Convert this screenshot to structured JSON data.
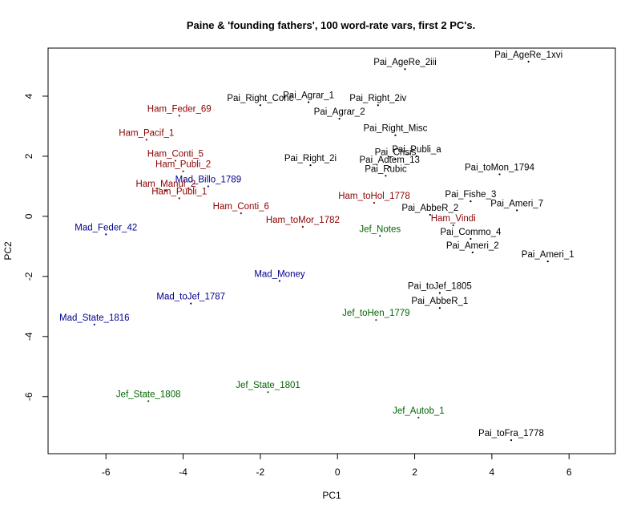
{
  "chart_data": {
    "type": "scatter",
    "title": "Paine & 'founding fathers', 100 word-rate vars, first 2 PC's.",
    "xlabel": "PC1",
    "ylabel": "PC2",
    "xlim": [
      -7.5,
      7.2
    ],
    "ylim": [
      -7.9,
      5.6
    ],
    "xticks": [
      "-6",
      "-4",
      "-2",
      "0",
      "2",
      "4",
      "6"
    ],
    "yticks": [
      "-6",
      "-4",
      "-2",
      "0",
      "2",
      "4"
    ],
    "grid": false,
    "legend": "none",
    "colors": {
      "Pai": "#000000",
      "Ham": "#8b0000",
      "Mad": "#00008b",
      "Jef": "#006400"
    },
    "points": [
      {
        "label": "Pai_AgeRe_2iii",
        "group": "Pai",
        "x": 1.75,
        "y": 4.9
      },
      {
        "label": "Pai_AgeRe_1xvi",
        "group": "Pai",
        "x": 4.95,
        "y": 5.15
      },
      {
        "label": "Pai_Agrar_1",
        "group": "Pai",
        "x": -0.75,
        "y": 3.8
      },
      {
        "label": "Pai_Right_Conc",
        "group": "Pai",
        "x": -2.0,
        "y": 3.7
      },
      {
        "label": "Pai_Right_2iv",
        "group": "Pai",
        "x": 1.05,
        "y": 3.7
      },
      {
        "label": "Pai_Agrar_2",
        "group": "Pai",
        "x": 0.05,
        "y": 3.25
      },
      {
        "label": "Pai_Right_Misc",
        "group": "Pai",
        "x": 1.5,
        "y": 2.7
      },
      {
        "label": "Pai_Publi_a",
        "group": "Pai",
        "x": 2.05,
        "y": 2.0
      },
      {
        "label": "Pai_Crisis",
        "group": "Pai",
        "x": 1.5,
        "y": 1.9
      },
      {
        "label": "Pai_Adtem_13",
        "group": "Pai",
        "x": 1.35,
        "y": 1.65
      },
      {
        "label": "Pai_Rubic",
        "group": "Pai",
        "x": 1.25,
        "y": 1.35
      },
      {
        "label": "Pai_Right_2i",
        "group": "Pai",
        "x": -0.7,
        "y": 1.7
      },
      {
        "label": "Pai_toMon_1794",
        "group": "Pai",
        "x": 4.2,
        "y": 1.4
      },
      {
        "label": "Pai_Fishe_3",
        "group": "Pai",
        "x": 3.45,
        "y": 0.5
      },
      {
        "label": "Pai_Ameri_7",
        "group": "Pai",
        "x": 4.65,
        "y": 0.2
      },
      {
        "label": "Pai_AbbeR_2",
        "group": "Pai",
        "x": 2.4,
        "y": 0.05
      },
      {
        "label": "Pai_Commo_4",
        "group": "Pai",
        "x": 3.45,
        "y": -0.75
      },
      {
        "label": "Pai_Ameri_2",
        "group": "Pai",
        "x": 3.5,
        "y": -1.2
      },
      {
        "label": "Pai_Ameri_1",
        "group": "Pai",
        "x": 5.45,
        "y": -1.5
      },
      {
        "label": "Pai_toJef_1805",
        "group": "Pai",
        "x": 2.65,
        "y": -2.55
      },
      {
        "label": "Pai_AbbeR_1",
        "group": "Pai",
        "x": 2.65,
        "y": -3.05
      },
      {
        "label": "Pai_toFra_1778",
        "group": "Pai",
        "x": 4.5,
        "y": -7.45
      },
      {
        "label": "Ham_Feder_69",
        "group": "Ham",
        "x": -4.1,
        "y": 3.35
      },
      {
        "label": "Ham_Pacif_1",
        "group": "Ham",
        "x": -4.95,
        "y": 2.55
      },
      {
        "label": "Ham_Conti_5",
        "group": "Ham",
        "x": -4.2,
        "y": 1.85
      },
      {
        "label": "Ham_Publi_2",
        "group": "Ham",
        "x": -4.0,
        "y": 1.5
      },
      {
        "label": "Ham_Manul_2",
        "group": "Ham",
        "x": -4.45,
        "y": 0.85
      },
      {
        "label": "Ham_Publi_1",
        "group": "Ham",
        "x": -4.1,
        "y": 0.6
      },
      {
        "label": "Ham_Conti_6",
        "group": "Ham",
        "x": -2.5,
        "y": 0.1
      },
      {
        "label": "Ham_toMor_1782",
        "group": "Ham",
        "x": -0.9,
        "y": -0.35
      },
      {
        "label": "Ham_toHol_1778",
        "group": "Ham",
        "x": 0.95,
        "y": 0.45
      },
      {
        "label": "Ham_Vindi",
        "group": "Ham",
        "x": 3.0,
        "y": -0.3
      },
      {
        "label": "Mad_Billo_1789",
        "group": "Mad",
        "x": -3.35,
        "y": 1.0
      },
      {
        "label": "Mad_Feder_42",
        "group": "Mad",
        "x": -6.0,
        "y": -0.6
      },
      {
        "label": "Mad_Money",
        "group": "Mad",
        "x": -1.5,
        "y": -2.15
      },
      {
        "label": "Mad_toJef_1787",
        "group": "Mad",
        "x": -3.8,
        "y": -2.9
      },
      {
        "label": "Mad_State_1816",
        "group": "Mad",
        "x": -6.3,
        "y": -3.6
      },
      {
        "label": "Jef_Notes",
        "group": "Jef",
        "x": 1.1,
        "y": -0.65
      },
      {
        "label": "Jef_toHen_1779",
        "group": "Jef",
        "x": 1.0,
        "y": -3.45
      },
      {
        "label": "Jef_State_1808",
        "group": "Jef",
        "x": -4.9,
        "y": -6.15
      },
      {
        "label": "Jef_State_1801",
        "group": "Jef",
        "x": -1.8,
        "y": -5.85
      },
      {
        "label": "Jef_Autob_1",
        "group": "Jef",
        "x": 2.1,
        "y": -6.7
      }
    ]
  }
}
